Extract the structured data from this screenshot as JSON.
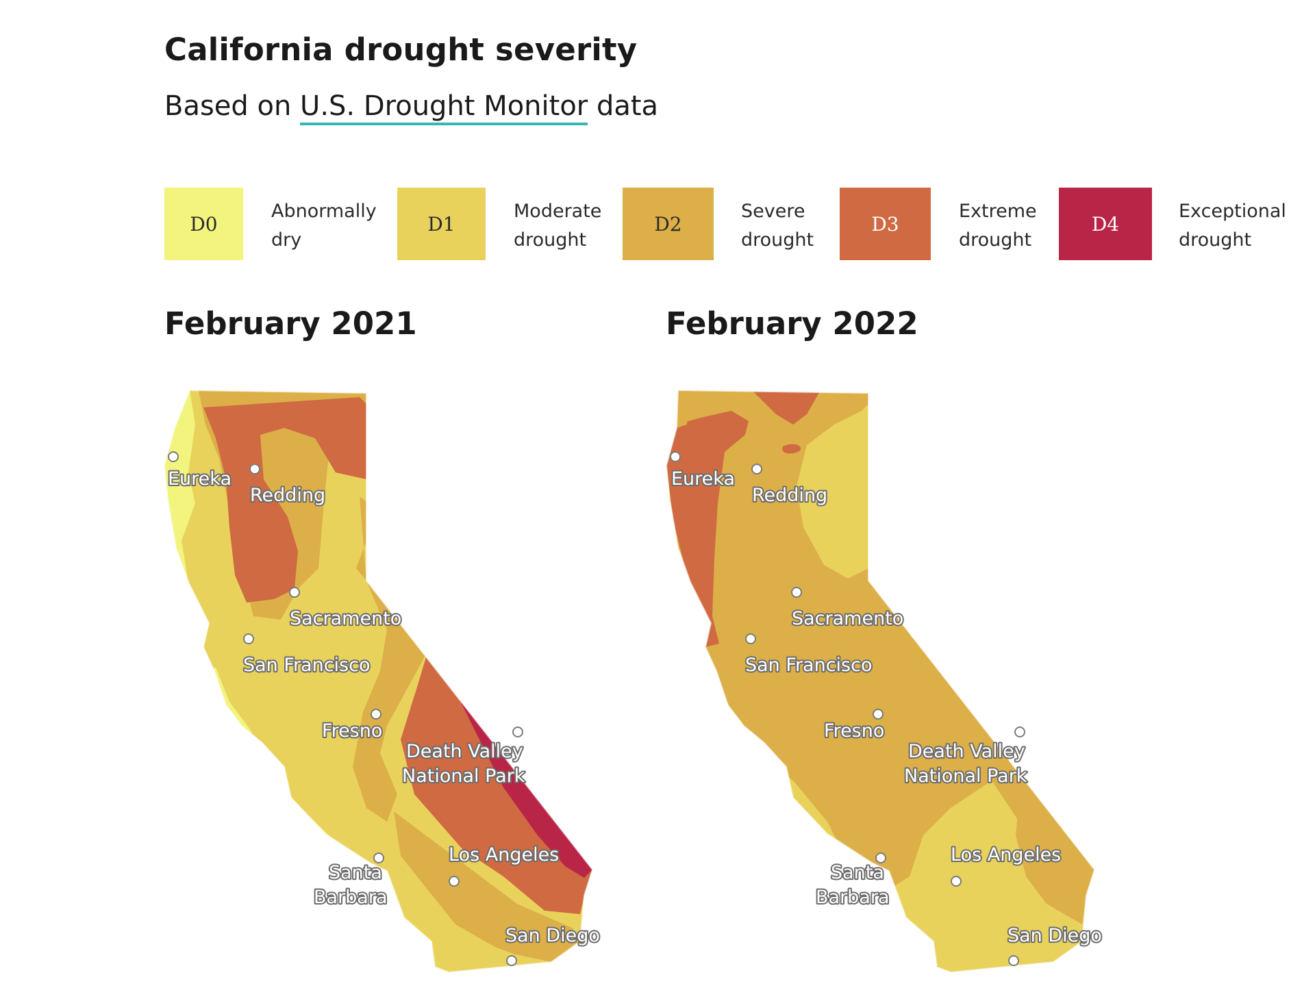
{
  "header": {
    "title": "California drought severity",
    "subtitle_prefix": "Based on ",
    "subtitle_link": "U.S. Drought Monitor",
    "subtitle_suffix": " data"
  },
  "legend": [
    {
      "code": "D0",
      "label_line1": "Abnormally",
      "label_line2": "dry",
      "color": "#f2f47e"
    },
    {
      "code": "D1",
      "label_line1": "Moderate",
      "label_line2": "drought",
      "color": "#e8d25c"
    },
    {
      "code": "D2",
      "label_line1": "Severe",
      "label_line2": "drought",
      "color": "#dcaf48"
    },
    {
      "code": "D3",
      "label_line1": "Extreme",
      "label_line2": "drought",
      "color": "#cf6a42"
    },
    {
      "code": "D4",
      "label_line1": "Exceptional",
      "label_line2": "drought",
      "color": "#b92547"
    }
  ],
  "maps": [
    {
      "title": "February 2021",
      "cities": {
        "eureka": "Eureka",
        "redding": "Redding",
        "sacramento": "Sacramento",
        "san_francisco": "San Francisco",
        "fresno": "Fresno",
        "death_valley_1": "Death Valley",
        "death_valley_2": "National Park",
        "los_angeles": "Los Angeles",
        "santa_barbara_1": "Santa",
        "santa_barbara_2": "Barbara",
        "san_diego": "San Diego"
      }
    },
    {
      "title": "February 2022",
      "cities": {
        "eureka": "Eureka",
        "redding": "Redding",
        "sacramento": "Sacramento",
        "san_francisco": "San Francisco",
        "fresno": "Fresno",
        "death_valley_1": "Death Valley",
        "death_valley_2": "National Park",
        "los_angeles": "Los Angeles",
        "santa_barbara_1": "Santa",
        "santa_barbara_2": "Barbara",
        "san_diego": "San Diego"
      }
    }
  ]
}
